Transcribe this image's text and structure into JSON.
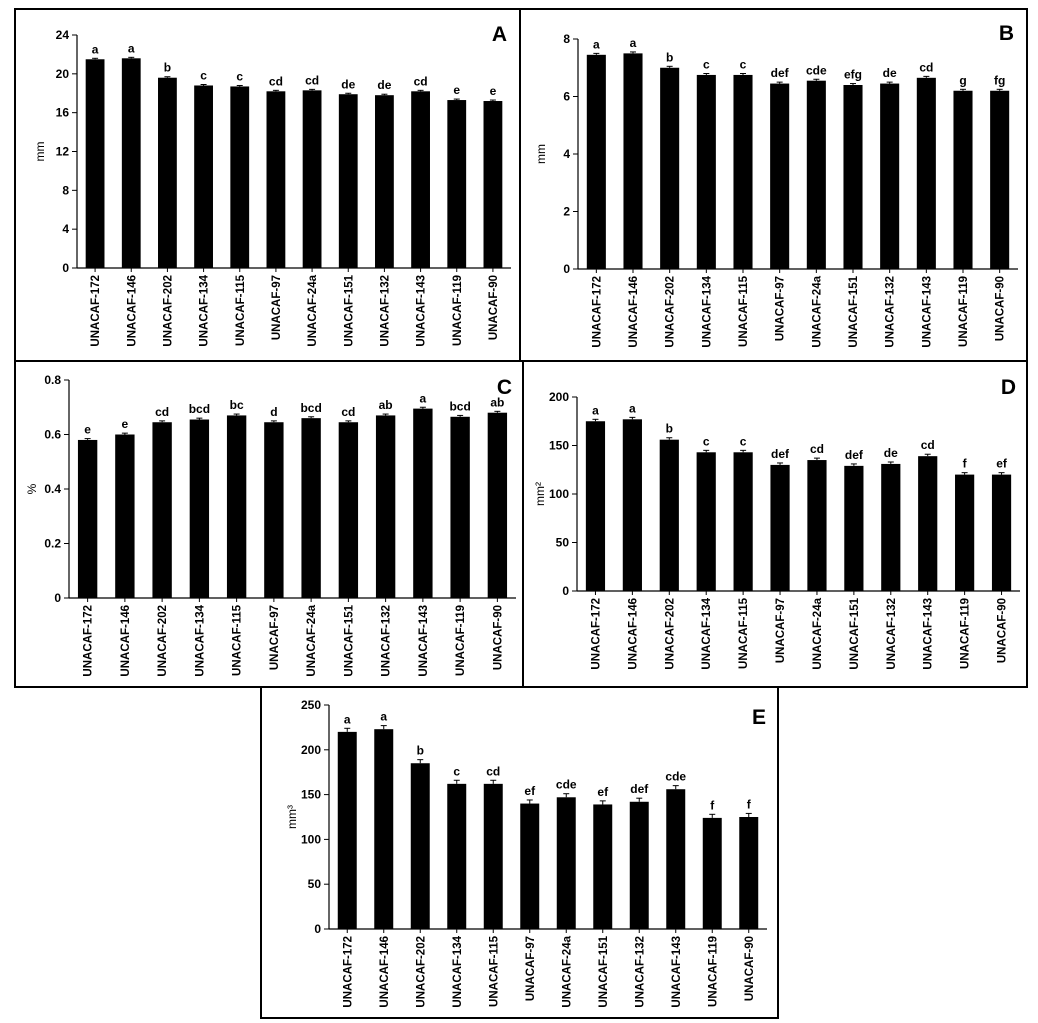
{
  "figure": {
    "panel_labels": [
      "A",
      "B",
      "C",
      "D",
      "E"
    ]
  },
  "chart_data": [
    {
      "panel": "A",
      "type": "bar",
      "title": "",
      "xlabel": "",
      "ylabel": "mm",
      "ylim": [
        0,
        24
      ],
      "yticks": [
        0,
        4,
        8,
        12,
        16,
        20,
        24
      ],
      "grid": false,
      "legend": "none",
      "categories": [
        "UNACAF-172",
        "UNACAF-146",
        "UNACAF-202",
        "UNACAF-134",
        "UNACAF-115",
        "UNACAF-97",
        "UNACAF-24a",
        "UNACAF-151",
        "UNACAF-132",
        "UNACAF-143",
        "UNACAF-119",
        "UNACAF-90"
      ],
      "values": [
        21.5,
        21.6,
        19.6,
        18.8,
        18.7,
        18.2,
        18.3,
        17.9,
        17.8,
        18.2,
        17.3,
        17.2
      ],
      "errors": [
        0.1,
        0.1,
        0.1,
        0.1,
        0.1,
        0.1,
        0.1,
        0.1,
        0.1,
        0.1,
        0.1,
        0.1
      ],
      "annotations": [
        "a",
        "a",
        "b",
        "c",
        "c",
        "cd",
        "cd",
        "de",
        "de",
        "cd",
        "e",
        "e"
      ]
    },
    {
      "panel": "B",
      "type": "bar",
      "title": "",
      "xlabel": "",
      "ylabel": "mm",
      "ylim": [
        0,
        8
      ],
      "yticks": [
        0,
        2,
        4,
        6,
        8
      ],
      "grid": false,
      "legend": "none",
      "categories": [
        "UNACAF-172",
        "UNACAF-146",
        "UNACAF-202",
        "UNACAF-134",
        "UNACAF-115",
        "UNACAF-97",
        "UNACAF-24a",
        "UNACAF-151",
        "UNACAF-132",
        "UNACAF-143",
        "UNACAF-119",
        "UNACAF-90"
      ],
      "values": [
        7.45,
        7.5,
        7.0,
        6.75,
        6.75,
        6.45,
        6.55,
        6.4,
        6.45,
        6.65,
        6.2,
        6.2
      ],
      "errors": [
        0.05,
        0.05,
        0.05,
        0.05,
        0.05,
        0.05,
        0.05,
        0.05,
        0.05,
        0.05,
        0.05,
        0.05
      ],
      "annotations": [
        "a",
        "a",
        "b",
        "c",
        "c",
        "def",
        "cde",
        "efg",
        "de",
        "cd",
        "g",
        "fg"
      ]
    },
    {
      "panel": "C",
      "type": "bar",
      "title": "",
      "xlabel": "",
      "ylabel": "%",
      "ylim": [
        0,
        0.8
      ],
      "yticks": [
        0,
        0.2,
        0.4,
        0.6,
        0.8
      ],
      "grid": false,
      "legend": "none",
      "categories": [
        "UNACAF-172",
        "UNACAF-146",
        "UNACAF-202",
        "UNACAF-134",
        "UNACAF-115",
        "UNACAF-97",
        "UNACAF-24a",
        "UNACAF-151",
        "UNACAF-132",
        "UNACAF-143",
        "UNACAF-119",
        "UNACAF-90"
      ],
      "values": [
        0.58,
        0.6,
        0.645,
        0.655,
        0.67,
        0.645,
        0.66,
        0.645,
        0.67,
        0.695,
        0.665,
        0.68
      ],
      "errors": [
        0.005,
        0.005,
        0.005,
        0.005,
        0.005,
        0.005,
        0.005,
        0.005,
        0.005,
        0.005,
        0.005,
        0.005
      ],
      "annotations": [
        "e",
        "e",
        "cd",
        "bcd",
        "bc",
        "d",
        "bcd",
        "cd",
        "ab",
        "a",
        "bcd",
        "ab"
      ]
    },
    {
      "panel": "D",
      "type": "bar",
      "title": "",
      "xlabel": "",
      "ylabel": "mm²",
      "ylim": [
        0,
        200
      ],
      "yticks": [
        0,
        50,
        100,
        150,
        200
      ],
      "grid": false,
      "legend": "none",
      "categories": [
        "UNACAF-172",
        "UNACAF-146",
        "UNACAF-202",
        "UNACAF-134",
        "UNACAF-115",
        "UNACAF-97",
        "UNACAF-24a",
        "UNACAF-151",
        "UNACAF-132",
        "UNACAF-143",
        "UNACAF-119",
        "UNACAF-90"
      ],
      "values": [
        175,
        177,
        156,
        143,
        143,
        130,
        135,
        129,
        131,
        139,
        120,
        120
      ],
      "errors": [
        2,
        2,
        2,
        2,
        2,
        2,
        2,
        2,
        2,
        2,
        2,
        2
      ],
      "annotations": [
        "a",
        "a",
        "b",
        "c",
        "c",
        "def",
        "cd",
        "def",
        "de",
        "cd",
        "f",
        "ef"
      ]
    },
    {
      "panel": "E",
      "type": "bar",
      "title": "",
      "xlabel": "",
      "ylabel": "mm³",
      "ylim": [
        0,
        250
      ],
      "yticks": [
        0,
        50,
        100,
        150,
        200,
        250
      ],
      "grid": false,
      "legend": "none",
      "categories": [
        "UNACAF-172",
        "UNACAF-146",
        "UNACAF-202",
        "UNACAF-134",
        "UNACAF-115",
        "UNACAF-97",
        "UNACAF-24a",
        "UNACAF-151",
        "UNACAF-132",
        "UNACAF-143",
        "UNACAF-119",
        "UNACAF-90"
      ],
      "values": [
        220,
        223,
        185,
        162,
        162,
        140,
        147,
        139,
        142,
        156,
        124,
        125
      ],
      "errors": [
        4,
        4,
        4,
        4,
        4,
        4,
        4,
        4,
        4,
        4,
        4,
        4
      ],
      "annotations": [
        "a",
        "a",
        "b",
        "c",
        "cd",
        "ef",
        "cde",
        "ef",
        "def",
        "cde",
        "f",
        "f"
      ]
    }
  ]
}
